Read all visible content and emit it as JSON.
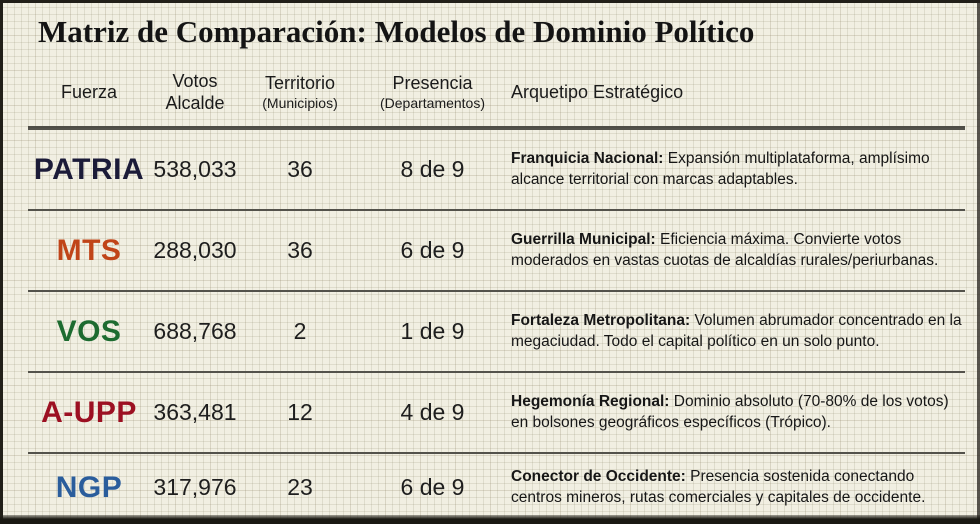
{
  "title": "Matriz de Comparación: Modelos de Dominio Político",
  "colors": {
    "background": "#f1efe2",
    "grid_line": "#d8d3bd",
    "divider": "#53524b",
    "patria": "#1b1b38",
    "mts": "#c04418",
    "vos": "#1d6b30",
    "aupp": "#9c1022",
    "ngp": "#2a5d9c"
  },
  "table": {
    "headers": {
      "fuerza": "Fuerza",
      "votos_line1": "Votos",
      "votos_line2": "Alcalde",
      "territorio": "Territorio",
      "territorio_sub": "(Municipios)",
      "presencia": "Presencia",
      "presencia_sub": "(Departamentos)",
      "arquetipo": "Arquetipo Estratégico"
    },
    "rows": [
      {
        "fuerza": "PATRIA",
        "color": "#1b1b38",
        "votos": "538,033",
        "territorio": "36",
        "presencia": "8 de 9",
        "arquetipo_titulo": "Franquicia Nacional:",
        "arquetipo_desc": " Expansión multiplataforma, amplísimo alcance territorial con marcas adaptables."
      },
      {
        "fuerza": "MTS",
        "color": "#c04418",
        "votos": "288,030",
        "territorio": "36",
        "presencia": "6 de 9",
        "arquetipo_titulo": "Guerrilla Municipal:",
        "arquetipo_desc": " Eficiencia máxima. Convierte votos moderados en vastas cuotas de alcaldías rurales/periurbanas."
      },
      {
        "fuerza": "VOS",
        "color": "#1d6b30",
        "votos": "688,768",
        "territorio": "2",
        "presencia": "1 de 9",
        "arquetipo_titulo": "Fortaleza Metropolitana:",
        "arquetipo_desc": " Volumen abrumador concentrado en la megaciudad. Todo el capital político en un solo punto."
      },
      {
        "fuerza": "A-UPP",
        "color": "#9c1022",
        "votos": "363,481",
        "territorio": "12",
        "presencia": "4 de 9",
        "arquetipo_titulo": "Hegemonía Regional:",
        "arquetipo_desc": " Dominio absoluto (70-80% de los votos) en bolsones geográficos específicos (Trópico)."
      },
      {
        "fuerza": "NGP",
        "color": "#2a5d9c",
        "votos": "317,976",
        "territorio": "23",
        "presencia": "6 de 9",
        "arquetipo_titulo": "Conector de Occidente:",
        "arquetipo_desc": " Presencia sostenida conectando centros mineros, rutas comerciales y capitales de occidente."
      }
    ]
  },
  "chart_data": {
    "type": "table",
    "title": "Matriz de Comparación: Modelos de Dominio Político",
    "columns": [
      "Fuerza",
      "Votos Alcalde",
      "Territorio (Municipios)",
      "Presencia (Departamentos)",
      "Arquetipo Estratégico"
    ],
    "rows": [
      [
        "PATRIA",
        538033,
        36,
        "8 de 9",
        "Franquicia Nacional: Expansión multiplataforma, amplísimo alcance territorial con marcas adaptables."
      ],
      [
        "MTS",
        288030,
        36,
        "6 de 9",
        "Guerrilla Municipal: Eficiencia máxima. Convierte votos moderados en vastas cuotas de alcaldías rurales/periurbanas."
      ],
      [
        "VOS",
        688768,
        2,
        "1 de 9",
        "Fortaleza Metropolitana: Volumen abrumador concentrado en la megaciudad. Todo el capital político en un solo punto."
      ],
      [
        "A-UPP",
        363481,
        12,
        "4 de 9",
        "Hegemonía Regional: Dominio absoluto (70-80% de los votos) en bolsones geográficos específicos (Trópico)."
      ],
      [
        "NGP",
        317976,
        23,
        "6 de 9",
        "Conector de Occidente: Presencia sostenida conectando centros mineros, rutas comerciales y capitales de occidente."
      ]
    ]
  }
}
